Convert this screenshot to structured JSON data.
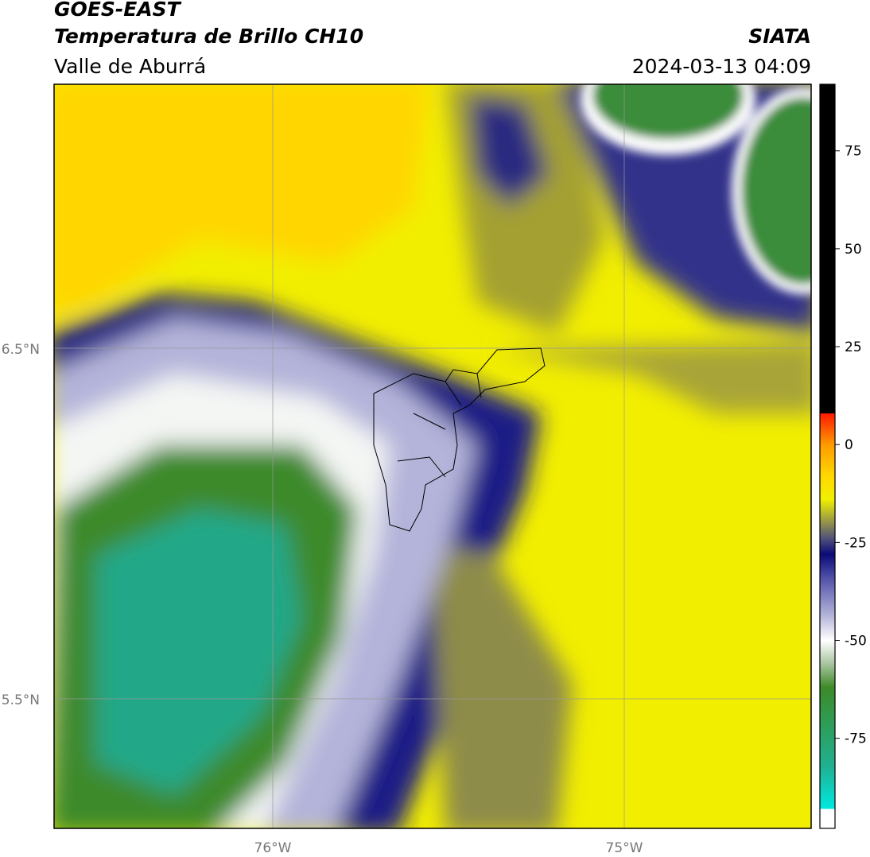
{
  "header": {
    "title": "GOES-EAST",
    "subtitle": "Temperatura de Brillo CH10",
    "region": "Valle de Aburrá",
    "source": "SIATA",
    "datetime": "2024-03-13 04:09"
  },
  "map": {
    "lat_labels": [
      "6.5°N",
      "5.5°N"
    ],
    "lon_labels": [
      "76°W",
      "75°W"
    ]
  },
  "colorbar": {
    "ylim": [
      -98,
      92
    ],
    "ticks": [
      75,
      50,
      25,
      0,
      -25,
      -50,
      -75
    ],
    "stops": [
      {
        "value": -98,
        "color": "#ffffff"
      },
      {
        "value": -93,
        "color": "#ffffff"
      },
      {
        "value": -93,
        "color": "#00e8e0"
      },
      {
        "value": -82,
        "color": "#20b090"
      },
      {
        "value": -70,
        "color": "#309a50"
      },
      {
        "value": -62,
        "color": "#3d8a28"
      },
      {
        "value": -56,
        "color": "#a8c4a0"
      },
      {
        "value": -50,
        "color": "#ffffff"
      },
      {
        "value": -44,
        "color": "#b8b8dc"
      },
      {
        "value": -34,
        "color": "#5050a8"
      },
      {
        "value": -28,
        "color": "#0a0a78"
      },
      {
        "value": -24,
        "color": "#50507a"
      },
      {
        "value": -19,
        "color": "#a0a040"
      },
      {
        "value": -14,
        "color": "#f0f000"
      },
      {
        "value": -8,
        "color": "#ffd800"
      },
      {
        "value": 0,
        "color": "#ff9a00"
      },
      {
        "value": 8,
        "color": "#ff1800"
      },
      {
        "value": 8,
        "color": "#000000"
      },
      {
        "value": 92,
        "color": "#000000"
      }
    ]
  }
}
